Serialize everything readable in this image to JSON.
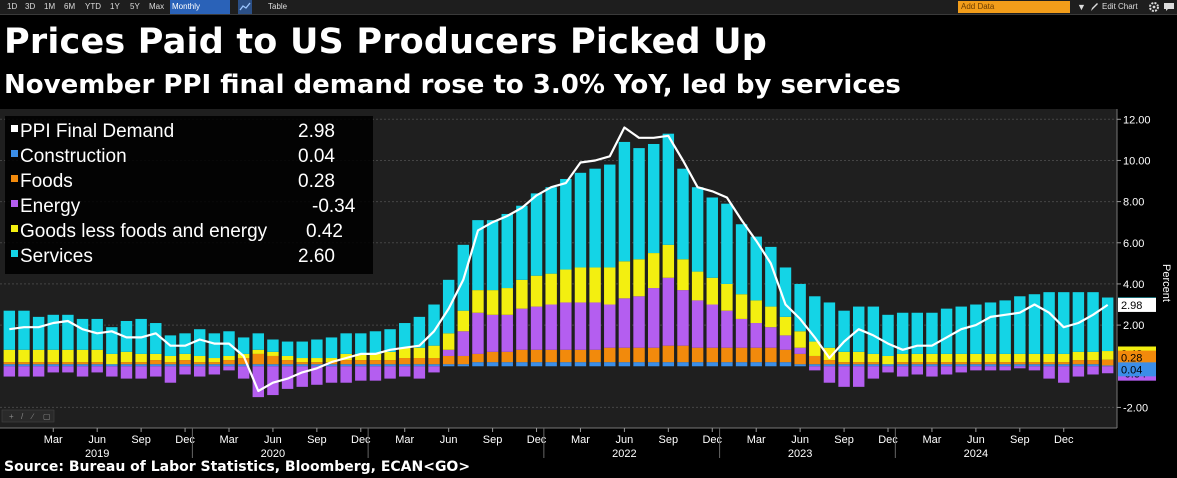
{
  "toolbar": {
    "timeframes": [
      "1D",
      "3D",
      "1M",
      "6M",
      "YTD",
      "1Y",
      "5Y",
      "Max"
    ],
    "frequency": "Monthly",
    "table_label": "Table",
    "add_data_placeholder": "Add Data",
    "edit_chart_label": "Edit Chart"
  },
  "header": {
    "title": "Prices Paid to US Producers Picked Up",
    "subtitle": "November PPI final demand rose to 3.0% YoY, led by services"
  },
  "footer": {
    "source": "Source: Bureau of Labor Statistics, Bloomberg, ECAN<GO>"
  },
  "colors": {
    "background": "#000000",
    "plot_background": "#1f1f1f",
    "gridline": "#454545",
    "line": "#ffffff",
    "Construction": "#3b8ee8",
    "Foods": "#f28a0c",
    "Energy": "#b45ef0",
    "Goods less foods and energy": "#f3ef10",
    "Services": "#14d4e6"
  },
  "chart_data": {
    "type": "bar",
    "stacked": true,
    "overlay_line": "PPI Final Demand",
    "ylabel": "Percent",
    "ylim": [
      -3,
      12.5
    ],
    "yticks": [
      -2,
      2,
      4,
      6,
      8,
      10,
      12
    ],
    "ytick_labels": [
      "-2.00",
      "2.00",
      "4.00",
      "6.00",
      "8.00",
      "10.00",
      "12.00"
    ],
    "grid": true,
    "legend_position": "top-left",
    "x_month_ticks": [
      "Mar",
      "Jun",
      "Sep",
      "Dec",
      "Mar",
      "Jun",
      "Sep",
      "Dec",
      "Mar",
      "Jun",
      "Sep",
      "Dec",
      "Mar",
      "Jun",
      "Sep",
      "Dec",
      "Mar",
      "Jun",
      "Sep",
      "Dec",
      "Mar",
      "Jun",
      "Sep",
      "Dec"
    ],
    "x_year_labels": [
      "2019",
      "2020",
      "2022",
      "2023",
      "2024"
    ],
    "x_start": "2018-12",
    "x_end": "2024-11",
    "legend": [
      {
        "name": "PPI Final Demand",
        "value_label": "2.98"
      },
      {
        "name": "Construction",
        "value_label": "0.04"
      },
      {
        "name": "Foods",
        "value_label": "0.28"
      },
      {
        "name": "Energy",
        "value_label": "-0.34"
      },
      {
        "name": "Goods less foods and energy",
        "value_label": "0.42"
      },
      {
        "name": "Services",
        "value_label": "2.60"
      }
    ],
    "series": [
      {
        "name": "PPI Final Demand",
        "kind": "line",
        "values": [
          1.8,
          1.9,
          1.9,
          2.1,
          2.2,
          1.8,
          1.6,
          1.7,
          1.4,
          1.4,
          1.6,
          1.0,
          1.0,
          1.3,
          1.1,
          1.1,
          0.5,
          -1.2,
          -0.8,
          -0.6,
          -0.3,
          -0.1,
          0.2,
          0.4,
          0.6,
          0.6,
          0.8,
          0.9,
          1.0,
          1.7,
          2.8,
          4.2,
          6.6,
          7.0,
          7.3,
          7.7,
          8.3,
          8.7,
          8.9,
          9.9,
          10.0,
          10.2,
          11.6,
          11.1,
          11.1,
          11.2,
          10.0,
          8.7,
          8.5,
          8.2,
          7.1,
          6.1,
          5.0,
          3.0,
          2.3,
          1.4,
          0.4,
          1.2,
          1.8,
          1.5,
          1.1,
          0.8,
          1.0,
          1.0,
          1.4,
          1.8,
          2.0,
          2.4,
          2.5,
          2.6,
          3.0,
          2.6,
          1.9,
          2.1,
          2.5,
          2.98
        ]
      },
      {
        "name": "Construction",
        "kind": "bar",
        "values": [
          0.1,
          0.1,
          0.1,
          0.1,
          0.1,
          0.1,
          0.1,
          0.1,
          0.1,
          0.1,
          0.1,
          0.1,
          0.1,
          0.1,
          0.1,
          0.1,
          0.1,
          0.1,
          0.1,
          0.1,
          0.1,
          0.1,
          0.1,
          0.1,
          0.1,
          0.1,
          0.1,
          0.1,
          0.1,
          0.1,
          0.1,
          0.1,
          0.2,
          0.2,
          0.2,
          0.2,
          0.2,
          0.2,
          0.2,
          0.2,
          0.2,
          0.2,
          0.2,
          0.2,
          0.2,
          0.2,
          0.2,
          0.2,
          0.2,
          0.2,
          0.2,
          0.2,
          0.2,
          0.2,
          0.1,
          0.1,
          0.1,
          0.1,
          0.1,
          0.1,
          0.1,
          0.1,
          0.1,
          0.1,
          0.1,
          0.1,
          0.1,
          0.1,
          0.1,
          0.1,
          0.1,
          0.1,
          0.1,
          0.1,
          0.1,
          0.04
        ]
      },
      {
        "name": "Foods",
        "kind": "bar",
        "values": [
          0.1,
          0.1,
          0.1,
          0.1,
          0.1,
          0.1,
          0.1,
          0.0,
          0.1,
          0.1,
          0.2,
          0.1,
          0.2,
          0.1,
          0.1,
          0.2,
          0.3,
          0.5,
          0.4,
          0.2,
          0.1,
          0.1,
          0.1,
          0.2,
          0.2,
          0.2,
          0.2,
          0.3,
          0.3,
          0.3,
          0.4,
          0.4,
          0.4,
          0.5,
          0.5,
          0.6,
          0.6,
          0.6,
          0.6,
          0.6,
          0.6,
          0.7,
          0.7,
          0.7,
          0.7,
          0.8,
          0.8,
          0.7,
          0.7,
          0.7,
          0.7,
          0.7,
          0.7,
          0.6,
          0.5,
          0.4,
          0.2,
          0.1,
          0.1,
          0.1,
          0.0,
          0.1,
          0.1,
          0.1,
          0.1,
          0.1,
          0.1,
          0.1,
          0.1,
          0.1,
          0.1,
          0.1,
          0.1,
          0.2,
          0.2,
          0.28
        ]
      },
      {
        "name": "Energy",
        "kind": "bar",
        "values": [
          -0.5,
          -0.5,
          -0.5,
          -0.3,
          -0.3,
          -0.5,
          -0.3,
          -0.5,
          -0.6,
          -0.6,
          -0.5,
          -0.8,
          -0.4,
          -0.5,
          -0.4,
          -0.2,
          -0.6,
          -1.5,
          -1.4,
          -1.1,
          -1.0,
          -0.9,
          -0.8,
          -0.8,
          -0.7,
          -0.7,
          -0.6,
          -0.5,
          -0.6,
          -0.3,
          0.3,
          1.2,
          2.0,
          1.8,
          1.8,
          2.0,
          2.1,
          2.2,
          2.3,
          2.3,
          2.3,
          2.1,
          2.4,
          2.5,
          2.9,
          3.3,
          2.7,
          2.3,
          2.1,
          1.8,
          1.4,
          1.2,
          1.0,
          0.7,
          0.3,
          -0.2,
          -0.8,
          -1.0,
          -1.0,
          -0.6,
          -0.3,
          -0.5,
          -0.4,
          -0.5,
          -0.4,
          -0.3,
          -0.2,
          -0.2,
          -0.2,
          -0.1,
          -0.2,
          -0.6,
          -0.8,
          -0.5,
          -0.4,
          -0.34
        ]
      },
      {
        "name": "Goods less foods and energy",
        "kind": "bar",
        "values": [
          0.6,
          0.6,
          0.6,
          0.6,
          0.6,
          0.6,
          0.6,
          0.5,
          0.5,
          0.4,
          0.3,
          0.3,
          0.3,
          0.3,
          0.2,
          0.2,
          0.2,
          0.2,
          0.2,
          0.2,
          0.2,
          0.2,
          0.2,
          0.3,
          0.3,
          0.3,
          0.4,
          0.5,
          0.5,
          0.6,
          0.8,
          1.0,
          1.1,
          1.2,
          1.3,
          1.4,
          1.5,
          1.5,
          1.6,
          1.7,
          1.7,
          1.8,
          1.8,
          1.8,
          1.7,
          1.6,
          1.5,
          1.4,
          1.3,
          1.3,
          1.2,
          1.1,
          1.0,
          0.9,
          0.8,
          0.7,
          0.6,
          0.5,
          0.5,
          0.4,
          0.4,
          0.4,
          0.4,
          0.4,
          0.4,
          0.4,
          0.4,
          0.4,
          0.4,
          0.4,
          0.4,
          0.4,
          0.4,
          0.4,
          0.4,
          0.42
        ]
      },
      {
        "name": "Services",
        "kind": "bar",
        "values": [
          1.9,
          1.9,
          1.6,
          1.7,
          1.7,
          1.5,
          1.5,
          1.3,
          1.5,
          1.7,
          1.5,
          1.0,
          1.0,
          1.3,
          1.2,
          1.2,
          0.8,
          0.8,
          0.6,
          0.7,
          0.8,
          0.9,
          1.0,
          1.0,
          1.0,
          1.1,
          1.1,
          1.2,
          1.5,
          2.0,
          2.6,
          3.2,
          3.4,
          3.4,
          3.6,
          3.6,
          4.0,
          4.2,
          4.4,
          4.6,
          4.8,
          5.0,
          5.8,
          5.4,
          5.3,
          5.4,
          4.4,
          4.1,
          3.9,
          3.9,
          3.4,
          3.1,
          2.9,
          2.4,
          2.3,
          2.2,
          2.2,
          2.0,
          2.2,
          2.3,
          2.0,
          2.0,
          2.0,
          2.0,
          2.2,
          2.3,
          2.4,
          2.5,
          2.6,
          2.8,
          2.9,
          3.0,
          3.0,
          2.9,
          2.9,
          2.6
        ]
      }
    ]
  }
}
